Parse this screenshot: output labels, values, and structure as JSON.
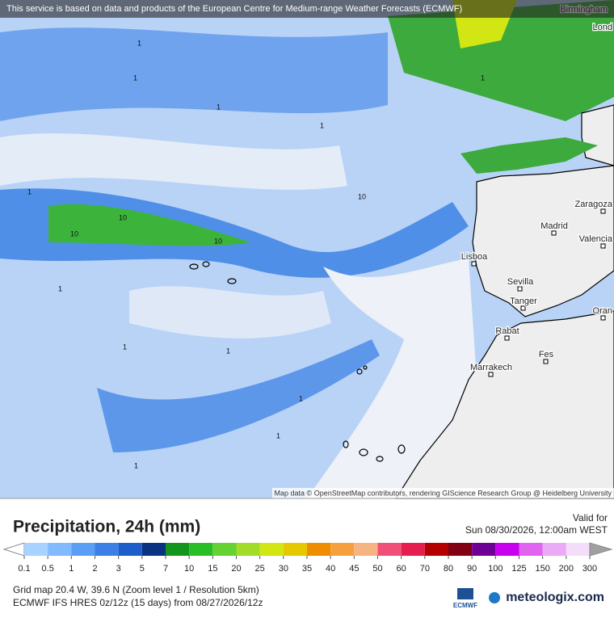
{
  "banner": "This service is based on data and products of the European Centre for Medium-range Weather Forecasts (ECMWF)",
  "cities": [
    "Birmingham",
    "Lond",
    "Zaragoza",
    "Madrid",
    "Valencia",
    "Lisboa",
    "Sevilla",
    "Tanger",
    "Oran",
    "Rabat",
    "Fes",
    "Marrakech"
  ],
  "contour_labels": [
    "1",
    "1",
    "1",
    "1",
    "1",
    "10",
    "10",
    "10",
    "1",
    "1",
    "1",
    "1",
    "1",
    "10",
    "1",
    "1"
  ],
  "attribution": "Map data © OpenStreetMap contributors, rendering GIScience Research Group @ Heidelberg University",
  "legend": {
    "title": "Precipitation, 24h (mm)",
    "valid_label": "Valid for",
    "valid_time": "Sun 08/30/2026, 12:00am WEST",
    "ticks": [
      0.1,
      0.5,
      1,
      2,
      3,
      5,
      7,
      10,
      15,
      20,
      25,
      30,
      35,
      40,
      45,
      50,
      60,
      70,
      80,
      90,
      100,
      125,
      150,
      200,
      300
    ],
    "under_color": "#ffffff",
    "over_color": "#a0a0a0",
    "colors": [
      "#a8d2ff",
      "#82baff",
      "#5a9ef5",
      "#3c80e6",
      "#1e5ec8",
      "#0a3282",
      "#14961e",
      "#28be28",
      "#64d232",
      "#a0dc28",
      "#d2e614",
      "#e6c800",
      "#f08c00",
      "#f5a03c",
      "#f5b482",
      "#f05078",
      "#e61e50",
      "#b40000",
      "#820014",
      "#6e0096",
      "#c800f0",
      "#e164f0",
      "#ebaaf5",
      "#f5dcfa"
    ]
  },
  "info": [
    "Grid map 20.4 W, 39.6 N (Zoom level 1 / Resolution 5km)",
    "ECMWF IFS HRES 0z/12z (15 days) from 08/27/2026/12z"
  ],
  "logos": [
    "ECMWF",
    "meteologix.com"
  ]
}
